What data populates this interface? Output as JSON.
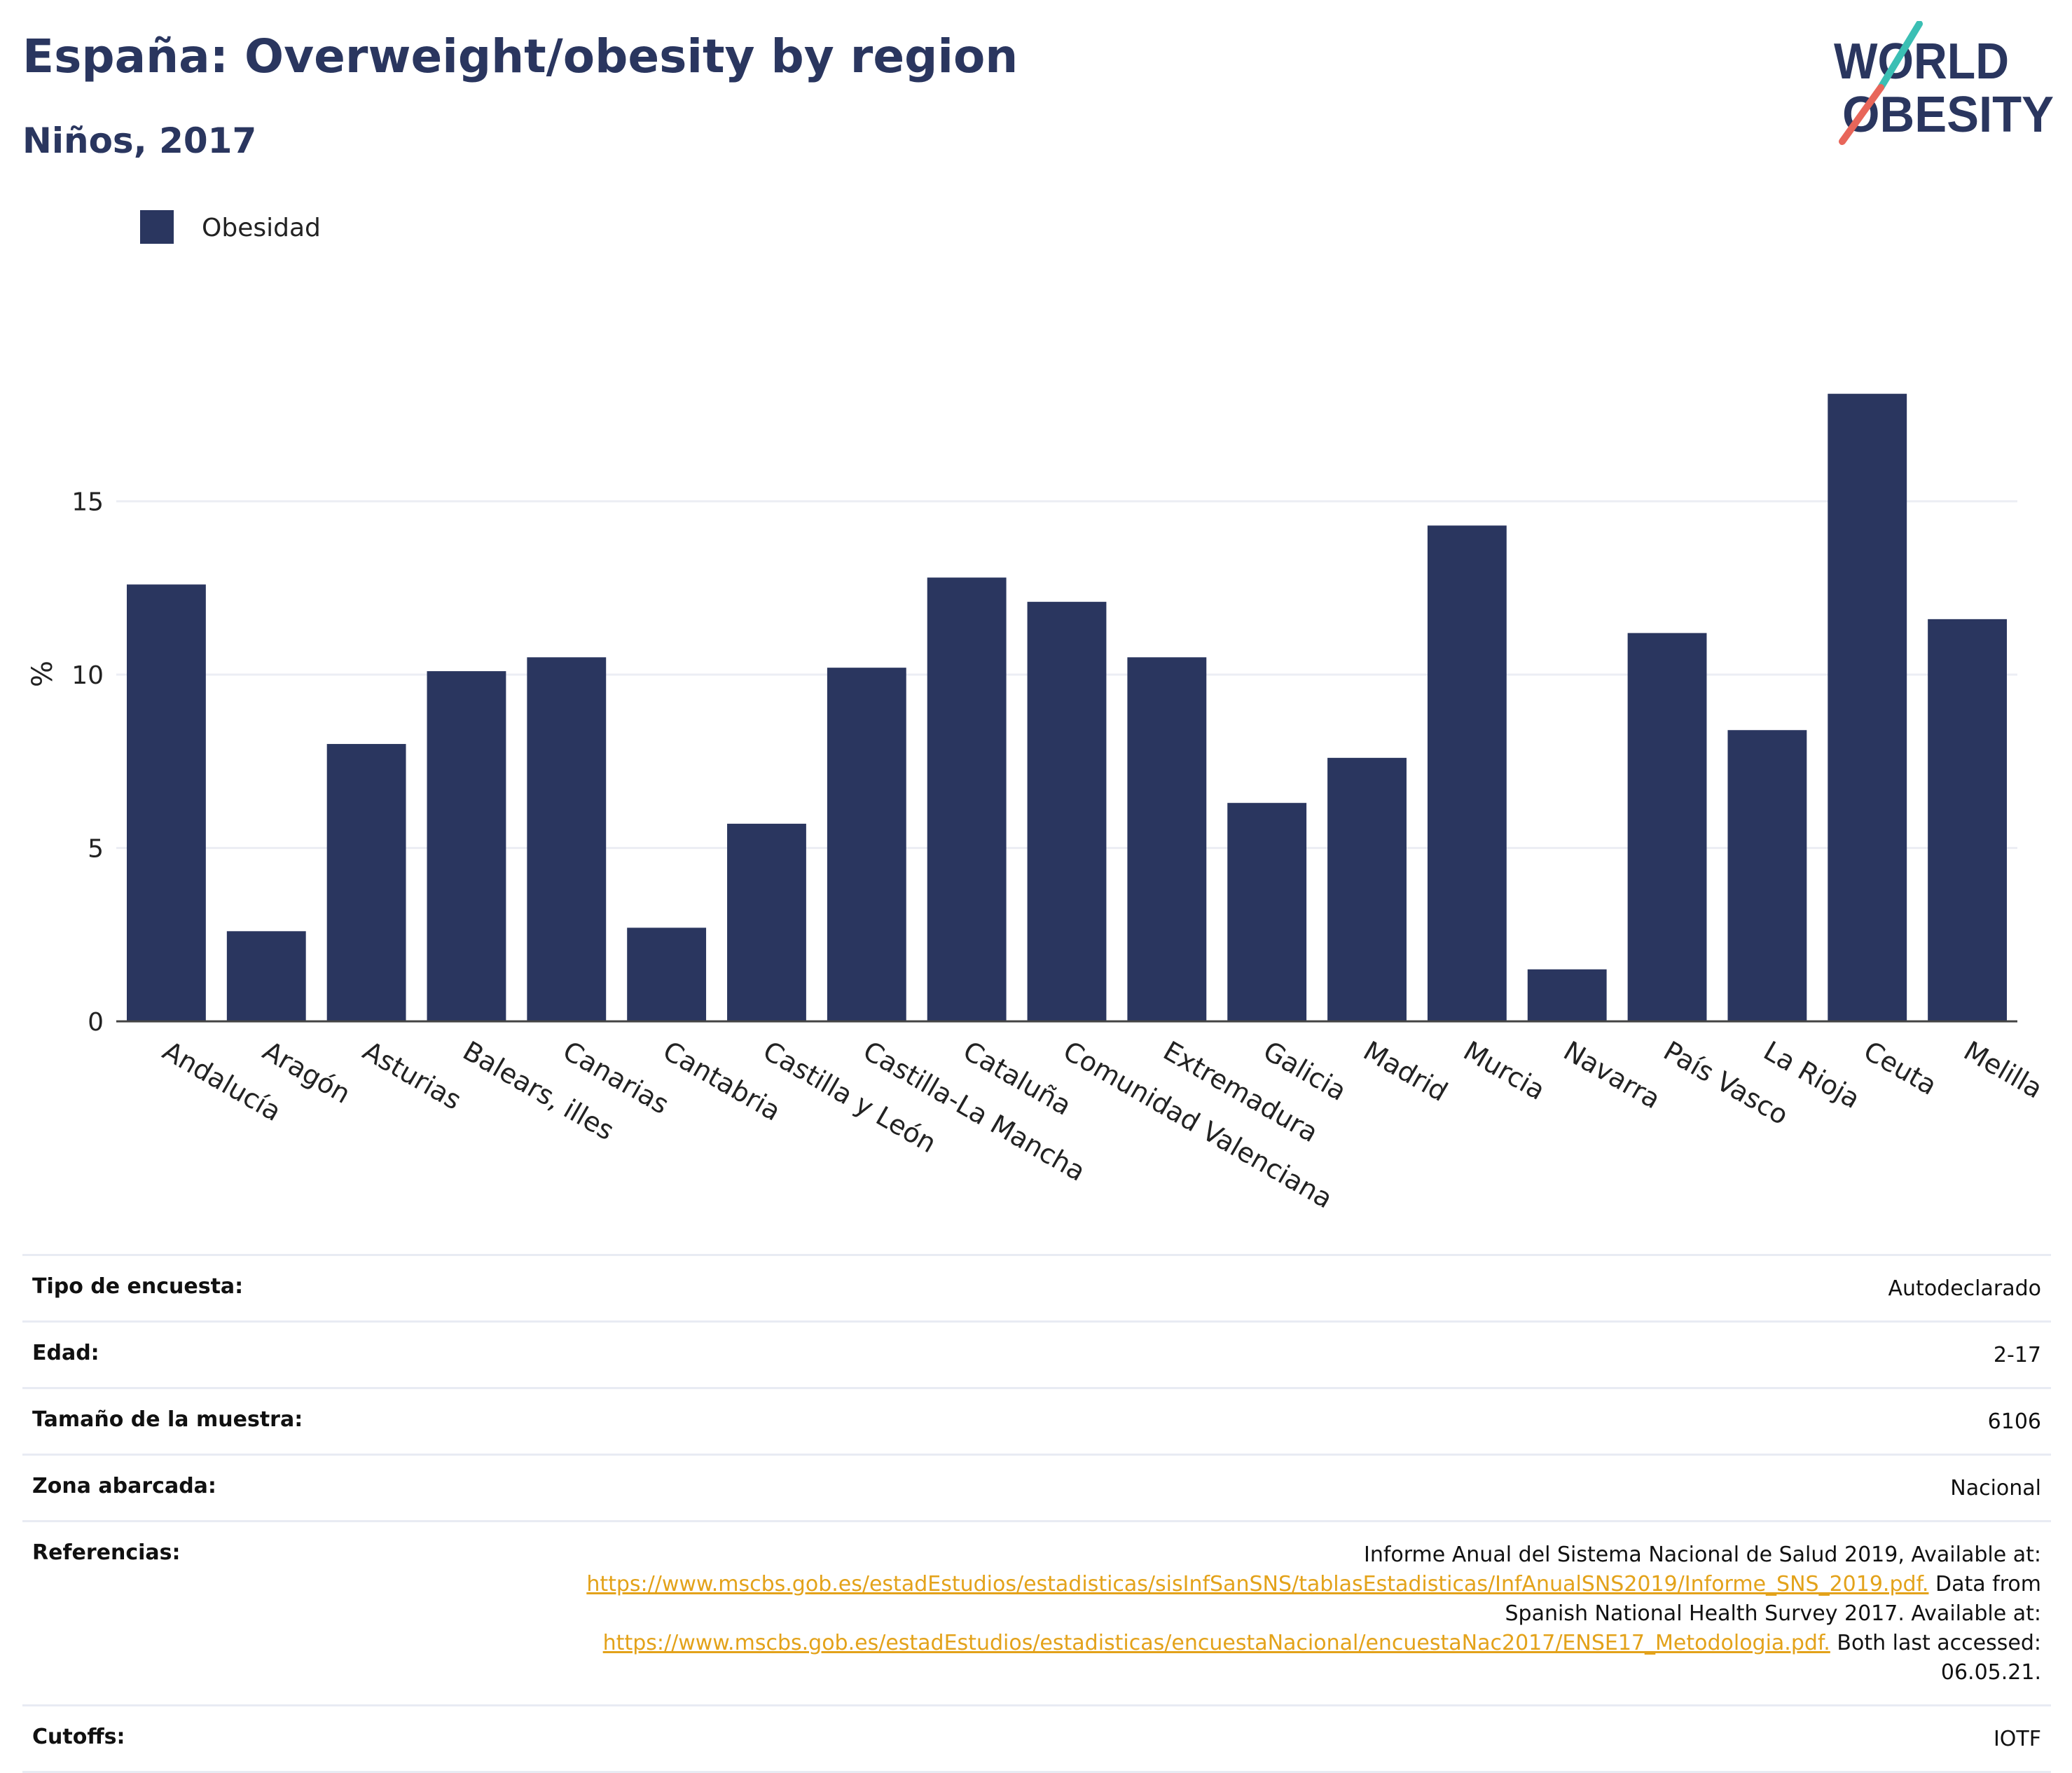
{
  "header": {
    "title": "España: Overweight/obesity by region",
    "subtitle": "Niños, 2017",
    "logo_top": "WORLD",
    "logo_bottom": "OBESITY"
  },
  "colors": {
    "bar": "#2a365f",
    "title": "#2a365f",
    "link": "#e3a21a",
    "logo_teal": "#3bbfb4",
    "logo_coral": "#e8665a",
    "grid": "#eceef4"
  },
  "chart_data": {
    "type": "bar",
    "categories": [
      "Andalucía",
      "Aragón",
      "Asturias",
      "Balears, illes",
      "Canarias",
      "Cantabria",
      "Castilla y León",
      "Castilla-La Mancha",
      "Cataluña",
      "Comunidad Valenciana",
      "Extremadura",
      "Galicia",
      "Madrid",
      "Murcia",
      "Navarra",
      "País Vasco",
      "La Rioja",
      "Ceuta",
      "Melilla"
    ],
    "series": [
      {
        "name": "Obesidad",
        "values": [
          12.6,
          2.6,
          8.0,
          10.1,
          10.5,
          2.7,
          5.7,
          10.2,
          12.8,
          12.1,
          10.5,
          6.3,
          7.6,
          14.3,
          1.5,
          11.2,
          8.4,
          18.1,
          11.6
        ]
      }
    ],
    "ylabel": "%",
    "ylim": [
      0,
      19.8
    ],
    "yticks": [
      0,
      5,
      10,
      15
    ],
    "grid": true,
    "legend": "top-left"
  },
  "info_table": {
    "rows": [
      {
        "label": "Tipo de encuesta:",
        "value": "Autodeclarado"
      },
      {
        "label": "Edad:",
        "value": "2-17"
      },
      {
        "label": "Tamaño de la muestra:",
        "value": "6106"
      },
      {
        "label": "Zona abarcada:",
        "value": "Nacional"
      }
    ],
    "references": {
      "label": "Referencias:",
      "text1": "Informe Anual del Sistema Nacional de Salud 2019, Available at:",
      "link1": "https://www.mscbs.gob.es/estadEstudios/estadisticas/sisInfSanSNS/tablasEstadisticas/InfAnualSNS2019/Informe_SNS_2019.pdf.",
      "text2": "Data from Spanish National Health Survey 2017. Available at:",
      "link2": "https://www.mscbs.gob.es/estadEstudios/estadisticas/encuestaNacional/encuestaNac2017/ENSE17_Metodologia.pdf.",
      "text3": "Both last accessed: 06.05.21."
    },
    "cutoffs": {
      "label": "Cutoffs:",
      "value": "IOTF"
    }
  }
}
